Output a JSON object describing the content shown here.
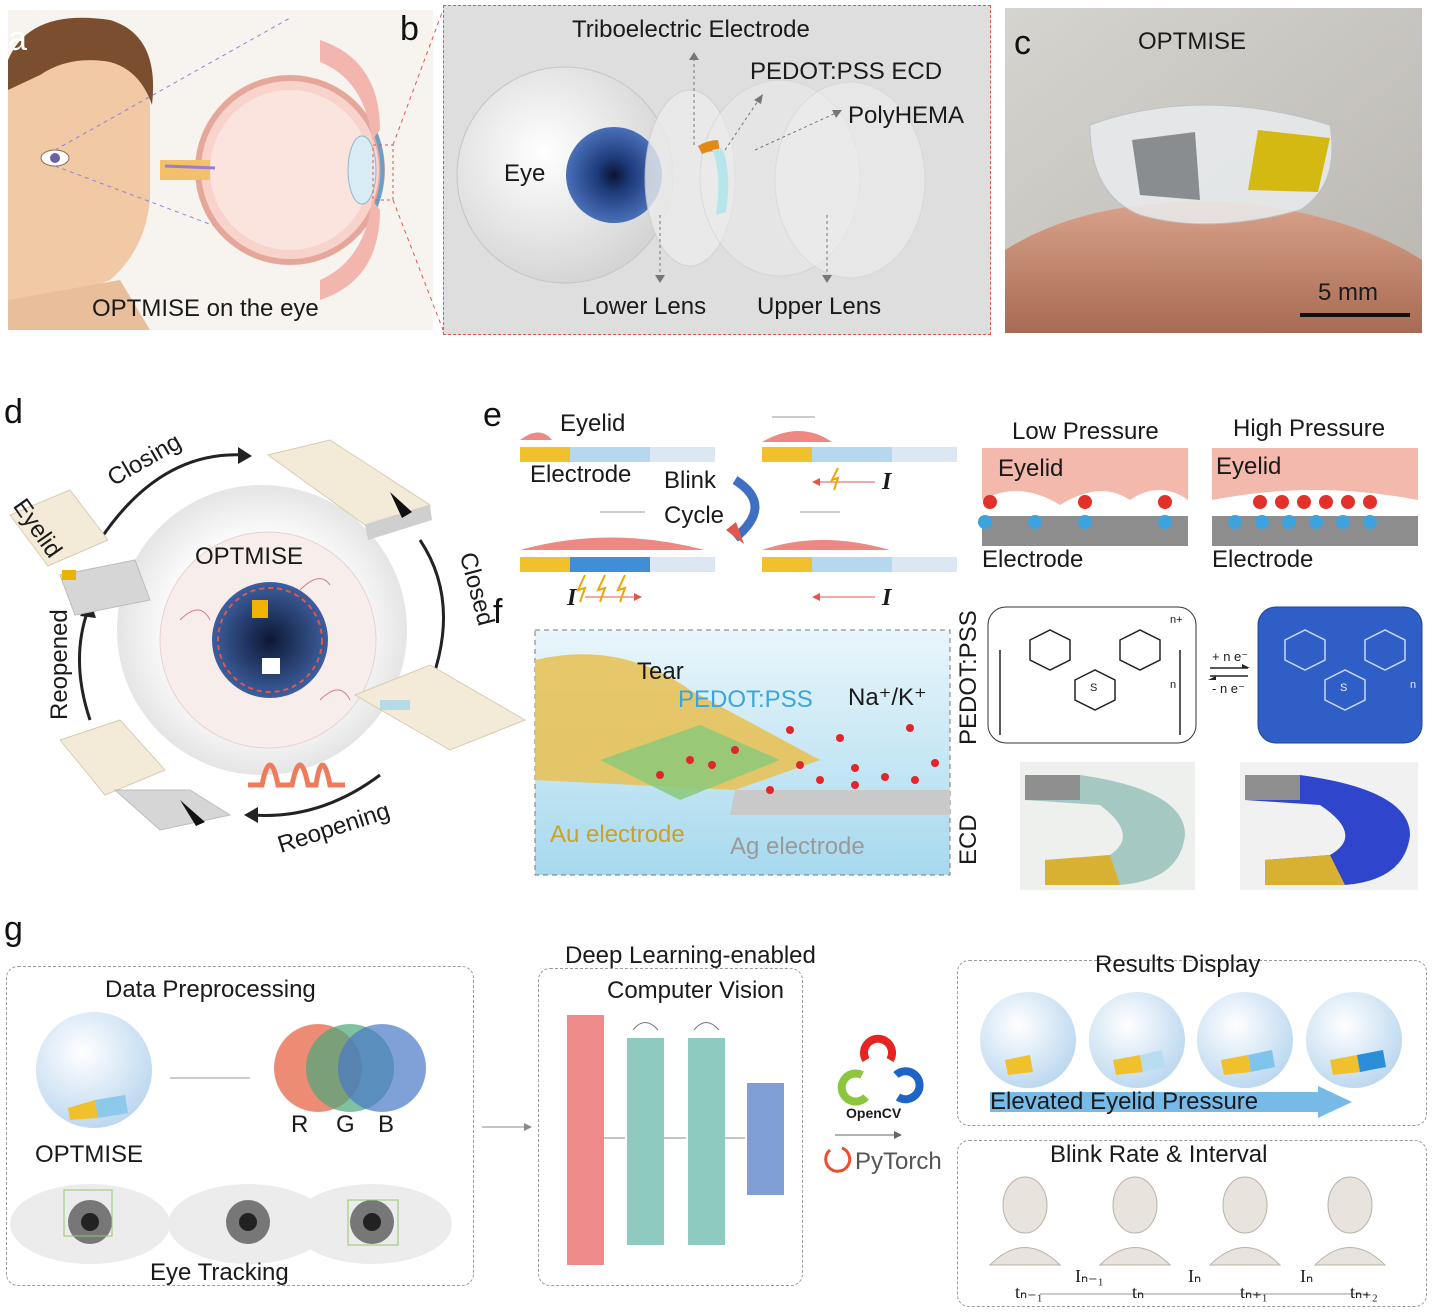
{
  "panels": {
    "a": {
      "letter": "a",
      "caption": "OPTMISE on the eye"
    },
    "b": {
      "letter": "b",
      "labels": {
        "triboelectric": "Triboelectric  Electrode",
        "pedot_ecd": "PEDOT:PSS ECD",
        "polyhema": "PolyHEMA",
        "eye": "Eye",
        "lower_lens": "Lower Lens",
        "upper_lens": "Upper Lens"
      }
    },
    "c": {
      "letter": "c",
      "title": "OPTMISE",
      "scale": "5 mm"
    },
    "d": {
      "letter": "d",
      "center": "OPTMISE",
      "steps": {
        "closing": "Closing",
        "closed": "Closed",
        "reopening": "Reopening",
        "reopened": "Reopened",
        "eyelid": "Eyelid"
      }
    },
    "e": {
      "letter": "e",
      "eyelid": "Eyelid",
      "electrode": "Electrode",
      "blink": "Blink",
      "cycle": "Cycle",
      "current": "I",
      "low_pressure": "Low Pressure",
      "high_pressure": "High Pressure",
      "eyelid_r": "Eyelid",
      "electrode_r": "Electrode"
    },
    "f": {
      "letter": "f",
      "tear": "Tear",
      "pedot": "PEDOT:PSS",
      "ions": "Na⁺/K⁺",
      "au": "Au electrode",
      "ag": "Ag electrode",
      "pedot_side": "PEDOT:PSS",
      "ecd_side": "ECD",
      "plus_e": "+ n e⁻",
      "minus_e": "- n e⁻",
      "n_plus": "n+",
      "sub_n": "n",
      "s": "S"
    },
    "g": {
      "letter": "g",
      "preprocessing": "Data Preprocessing",
      "optmise": "OPTMISE",
      "r": "R",
      "gch": "G",
      "b": "B",
      "eye_tracking": "Eye Tracking",
      "dl_line1": "Deep Learning-enabled",
      "dl_line2": "Computer Vision",
      "opencv": "OpenCV",
      "pytorch": "PyTorch",
      "results": "Results Display",
      "elevated": "Elevated  Eyelid  Pressure",
      "blink_rate": "Blink Rate  &  Interval",
      "timeline": [
        "tₙ₋₁",
        "Iₙ₋₁",
        "tₙ",
        "Iₙ",
        "tₙ₊₁",
        "Iₙ",
        "tₙ₊₂"
      ]
    }
  },
  "colors": {
    "accent_red": "#e2574c",
    "gold": "#f0c12c",
    "blue": "#3a7bd5",
    "teal": "#8fcac1",
    "salmon": "#ee8883",
    "ecd_blue": "#2f5ec6"
  }
}
